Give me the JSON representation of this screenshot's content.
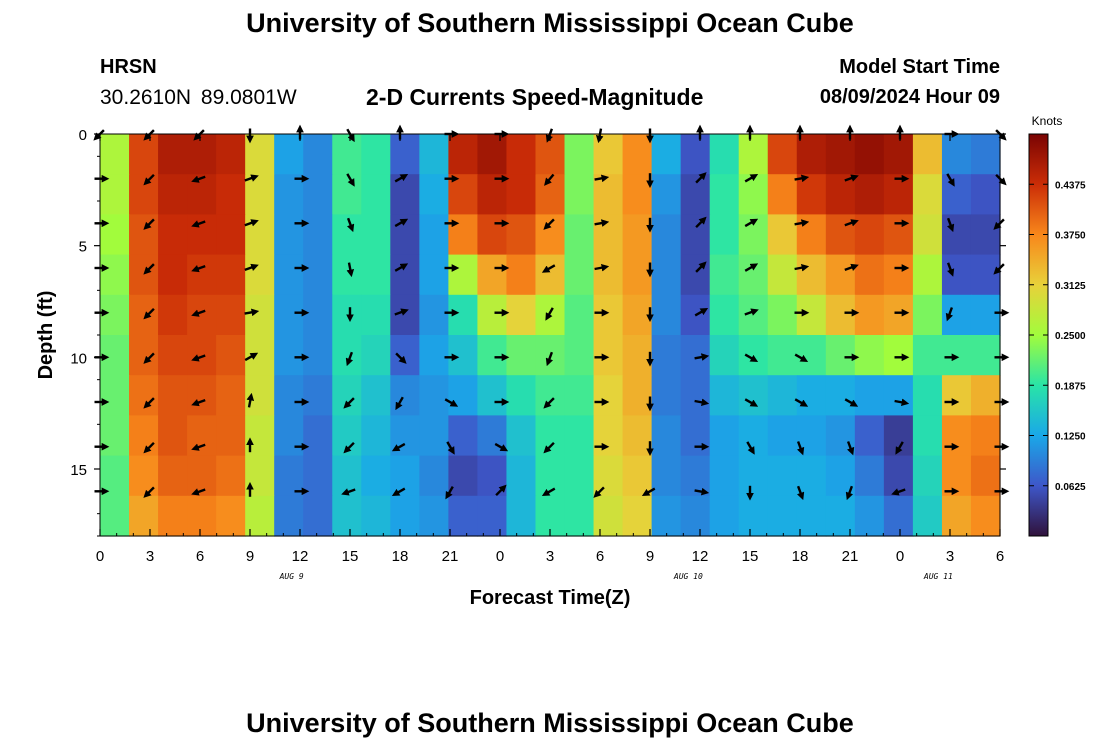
{
  "header": {
    "title": "University of Southern Mississippi Ocean Cube",
    "station": "HRSN",
    "coords": "30.2610N  89.0801W",
    "subtitle": "2-D Currents Speed-Magnitude",
    "model_label": "Model Start Time",
    "model_time": "08/09/2024 Hour 09"
  },
  "footer": {
    "title": "University of Southern Mississippi Ocean Cube"
  },
  "colors": {
    "colormap": [
      "#30123b",
      "#3e57c9",
      "#1aa8e8",
      "#29e4a7",
      "#a2fc3c",
      "#e8d13a",
      "#f8871b",
      "#cb2d07",
      "#7a0403"
    ]
  },
  "chart_data": {
    "type": "heatmap",
    "title": "2-D Currents Speed-Magnitude",
    "xlabel": "Forecast Time(Z)",
    "ylabel": "Depth (ft)",
    "x_ticks": [
      "0",
      "3",
      "6",
      "9",
      "12",
      "15",
      "18",
      "21",
      "0",
      "3",
      "6",
      "9",
      "12",
      "15",
      "18",
      "21",
      "0",
      "3",
      "6"
    ],
    "x_range_hours": [
      0,
      54
    ],
    "y_ticks": [
      0,
      5,
      10,
      15
    ],
    "y_range_ft": [
      0,
      18
    ],
    "date_labels": [
      {
        "label": "AUG 9",
        "hour": 11.5
      },
      {
        "label": "AUG 10",
        "hour": 35.3
      },
      {
        "label": "AUG 11",
        "hour": 50.3
      }
    ],
    "colorbar": {
      "unit": "Knots",
      "range": [
        0,
        0.5
      ],
      "tick_labels": [
        "0.4375",
        "0.3750",
        "0.3125",
        "0.2500",
        "0.1875",
        "0.1250",
        "0.0625"
      ],
      "tick_values": [
        0.4375,
        0.375,
        0.3125,
        0.25,
        0.1875,
        0.125,
        0.0625
      ]
    },
    "speed_knots_by_depth": [
      {
        "depth_ft": 0,
        "values": [
          0.26,
          0.42,
          0.46,
          0.46,
          0.45,
          0.3,
          0.12,
          0.1,
          0.2,
          0.19,
          0.07,
          0.14,
          0.45,
          0.47,
          0.44,
          0.41,
          0.23,
          0.32,
          0.37,
          0.13,
          0.06,
          0.18,
          0.26,
          0.42,
          0.46,
          0.47,
          0.48,
          0.47,
          0.33,
          0.1,
          0.09
        ]
      },
      {
        "depth_ft": 2,
        "values": [
          0.26,
          0.42,
          0.45,
          0.45,
          0.44,
          0.3,
          0.11,
          0.1,
          0.2,
          0.19,
          0.05,
          0.13,
          0.42,
          0.45,
          0.44,
          0.4,
          0.23,
          0.33,
          0.37,
          0.11,
          0.05,
          0.19,
          0.24,
          0.38,
          0.43,
          0.45,
          0.46,
          0.45,
          0.3,
          0.07,
          0.06
        ]
      },
      {
        "depth_ft": 4,
        "values": [
          0.25,
          0.41,
          0.44,
          0.44,
          0.44,
          0.3,
          0.11,
          0.1,
          0.19,
          0.19,
          0.05,
          0.12,
          0.38,
          0.42,
          0.41,
          0.37,
          0.22,
          0.33,
          0.36,
          0.1,
          0.05,
          0.19,
          0.23,
          0.32,
          0.38,
          0.41,
          0.42,
          0.41,
          0.29,
          0.05,
          0.05
        ]
      },
      {
        "depth_ft": 6,
        "values": [
          0.24,
          0.41,
          0.44,
          0.43,
          0.43,
          0.3,
          0.11,
          0.1,
          0.19,
          0.19,
          0.05,
          0.12,
          0.26,
          0.35,
          0.38,
          0.33,
          0.22,
          0.33,
          0.36,
          0.1,
          0.05,
          0.2,
          0.22,
          0.28,
          0.33,
          0.36,
          0.39,
          0.38,
          0.26,
          0.06,
          0.06
        ]
      },
      {
        "depth_ft": 8,
        "values": [
          0.23,
          0.4,
          0.43,
          0.42,
          0.42,
          0.29,
          0.11,
          0.1,
          0.18,
          0.18,
          0.05,
          0.11,
          0.18,
          0.27,
          0.31,
          0.26,
          0.21,
          0.32,
          0.35,
          0.1,
          0.06,
          0.19,
          0.21,
          0.23,
          0.28,
          0.33,
          0.36,
          0.35,
          0.23,
          0.12,
          0.12
        ]
      },
      {
        "depth_ft": 10,
        "values": [
          0.22,
          0.4,
          0.42,
          0.42,
          0.41,
          0.29,
          0.11,
          0.1,
          0.18,
          0.17,
          0.07,
          0.12,
          0.15,
          0.2,
          0.22,
          0.22,
          0.21,
          0.32,
          0.34,
          0.09,
          0.08,
          0.17,
          0.19,
          0.2,
          0.2,
          0.22,
          0.24,
          0.25,
          0.2,
          0.2,
          0.2
        ]
      },
      {
        "depth_ft": 12,
        "values": [
          0.22,
          0.39,
          0.41,
          0.41,
          0.4,
          0.29,
          0.1,
          0.09,
          0.17,
          0.15,
          0.1,
          0.11,
          0.12,
          0.15,
          0.18,
          0.2,
          0.2,
          0.31,
          0.34,
          0.09,
          0.08,
          0.14,
          0.15,
          0.14,
          0.13,
          0.13,
          0.12,
          0.12,
          0.18,
          0.32,
          0.34
        ]
      },
      {
        "depth_ft": 14,
        "values": [
          0.22,
          0.38,
          0.41,
          0.4,
          0.4,
          0.28,
          0.1,
          0.08,
          0.16,
          0.14,
          0.11,
          0.11,
          0.07,
          0.09,
          0.15,
          0.19,
          0.19,
          0.31,
          0.33,
          0.1,
          0.08,
          0.12,
          0.13,
          0.12,
          0.12,
          0.11,
          0.07,
          0.04,
          0.18,
          0.37,
          0.38
        ]
      },
      {
        "depth_ft": 16,
        "values": [
          0.21,
          0.37,
          0.4,
          0.4,
          0.39,
          0.28,
          0.09,
          0.08,
          0.15,
          0.13,
          0.12,
          0.1,
          0.05,
          0.06,
          0.14,
          0.19,
          0.19,
          0.3,
          0.32,
          0.1,
          0.09,
          0.12,
          0.13,
          0.13,
          0.13,
          0.12,
          0.09,
          0.05,
          0.17,
          0.37,
          0.39
        ]
      },
      {
        "depth_ft": 18,
        "values": [
          0.21,
          0.35,
          0.38,
          0.38,
          0.37,
          0.27,
          0.09,
          0.08,
          0.15,
          0.14,
          0.12,
          0.11,
          0.07,
          0.07,
          0.14,
          0.19,
          0.19,
          0.29,
          0.31,
          0.11,
          0.1,
          0.12,
          0.13,
          0.13,
          0.13,
          0.13,
          0.11,
          0.08,
          0.16,
          0.35,
          0.37
        ]
      }
    ],
    "vectors": {
      "hours": [
        0,
        3,
        6,
        9,
        12,
        15,
        18,
        21,
        24,
        27,
        30,
        33,
        36,
        39,
        42,
        45,
        48,
        51,
        54
      ],
      "depths_ft": [
        0,
        2,
        4,
        6,
        8,
        10,
        12,
        14,
        16
      ],
      "direction_deg_by_depth": [
        [
          225,
          225,
          225,
          180,
          0,
          150,
          0,
          90,
          90,
          200,
          190,
          180,
          0,
          0,
          0,
          0,
          0,
          90,
          135
        ],
        [
          90,
          225,
          250,
          70,
          90,
          150,
          60,
          90,
          90,
          220,
          80,
          180,
          45,
          60,
          80,
          70,
          90,
          150,
          135
        ],
        [
          90,
          225,
          250,
          70,
          90,
          160,
          60,
          90,
          90,
          225,
          80,
          180,
          45,
          60,
          80,
          70,
          90,
          160,
          225
        ],
        [
          90,
          225,
          250,
          70,
          90,
          170,
          60,
          90,
          90,
          240,
          80,
          180,
          45,
          60,
          80,
          70,
          90,
          160,
          225
        ],
        [
          90,
          225,
          250,
          80,
          90,
          180,
          70,
          90,
          90,
          210,
          90,
          180,
          60,
          70,
          90,
          90,
          90,
          200,
          90
        ],
        [
          90,
          225,
          250,
          60,
          90,
          200,
          135,
          90,
          90,
          200,
          90,
          180,
          80,
          120,
          120,
          90,
          90,
          90,
          90
        ],
        [
          90,
          225,
          250,
          10,
          90,
          225,
          210,
          120,
          90,
          225,
          90,
          180,
          100,
          120,
          120,
          120,
          100,
          90,
          90
        ],
        [
          90,
          225,
          250,
          0,
          90,
          225,
          240,
          150,
          120,
          225,
          90,
          180,
          90,
          150,
          160,
          160,
          210,
          90,
          90
        ],
        [
          90,
          225,
          250,
          0,
          90,
          250,
          240,
          210,
          45,
          240,
          225,
          240,
          100,
          180,
          160,
          200,
          250,
          90,
          90
        ]
      ]
    }
  }
}
